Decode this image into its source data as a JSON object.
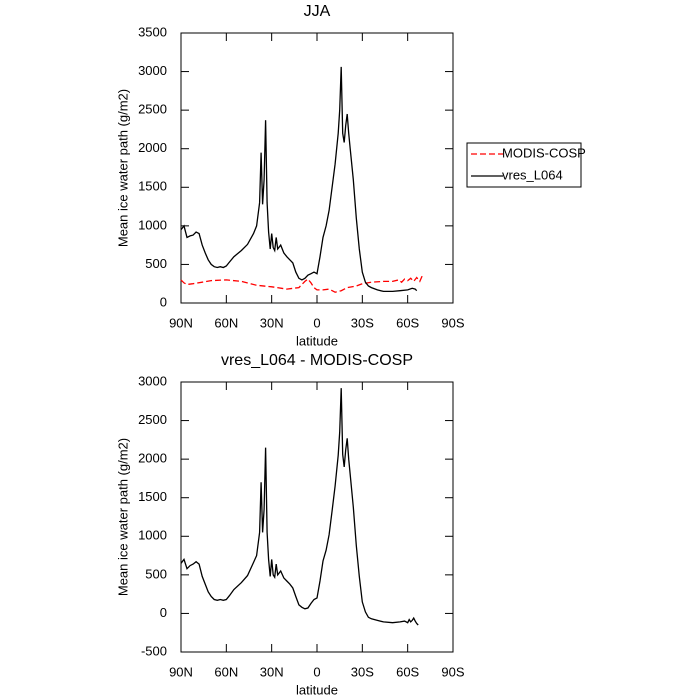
{
  "chart_data": [
    {
      "type": "line",
      "title": "JJA",
      "x_label": "latitude",
      "y_label": "Mean ice water path (g/m2)",
      "xlim": [
        90,
        -90
      ],
      "ylim": [
        0,
        3500
      ],
      "xticks": [
        {
          "value": 90,
          "label": "90N"
        },
        {
          "value": 60,
          "label": "60N"
        },
        {
          "value": 30,
          "label": "30N"
        },
        0,
        {
          "value": -30,
          "label": "30S"
        },
        {
          "value": -60,
          "label": "60S"
        },
        {
          "value": -90,
          "label": "90S"
        }
      ],
      "yticks": [
        0,
        500,
        1000,
        1500,
        2000,
        2500,
        3000,
        3500
      ],
      "legend": "right",
      "series": [
        {
          "name": "MODIS-COSP",
          "color": "#ff0000",
          "dash": true,
          "x": [
            90,
            88,
            86,
            82,
            76,
            70,
            60,
            50,
            40,
            30,
            20,
            12,
            8,
            6,
            4,
            2,
            0,
            -4,
            -8,
            -12,
            -16,
            -20,
            -26,
            -30,
            -36,
            -44,
            -50,
            -54,
            -56,
            -58,
            -60,
            -62,
            -64,
            -66,
            -68,
            -70
          ],
          "values": [
            300,
            260,
            240,
            250,
            270,
            290,
            300,
            280,
            230,
            210,
            180,
            200,
            280,
            310,
            260,
            200,
            170,
            170,
            180,
            140,
            160,
            200,
            220,
            250,
            270,
            280,
            280,
            300,
            270,
            310,
            290,
            320,
            280,
            330,
            280,
            370
          ]
        },
        {
          "name": "vres_L064",
          "color": "#000000",
          "dash": false,
          "x": [
            90,
            88,
            86,
            84,
            82,
            80,
            78,
            76,
            74,
            72,
            70,
            68,
            66,
            64,
            62,
            60,
            58,
            55,
            50,
            46,
            42,
            40,
            38,
            37,
            36,
            35,
            34,
            33,
            32,
            31,
            30,
            29,
            28,
            27,
            26,
            24,
            22,
            20,
            18,
            16,
            14,
            12,
            10,
            8,
            6,
            4,
            2,
            0,
            -2,
            -4,
            -6,
            -8,
            -10,
            -12,
            -14,
            -15,
            -16,
            -17,
            -18,
            -19,
            -20,
            -21,
            -22,
            -24,
            -26,
            -28,
            -30,
            -32,
            -34,
            -36,
            -40,
            -44,
            -50,
            -55,
            -60,
            -63,
            -65,
            -66
          ],
          "values": [
            950,
            1000,
            850,
            870,
            880,
            920,
            900,
            750,
            650,
            560,
            500,
            470,
            460,
            470,
            460,
            480,
            530,
            600,
            680,
            760,
            900,
            1000,
            1300,
            1950,
            1280,
            1600,
            2370,
            1300,
            920,
            700,
            900,
            720,
            680,
            850,
            700,
            750,
            650,
            600,
            560,
            520,
            400,
            320,
            300,
            320,
            360,
            380,
            400,
            380,
            600,
            850,
            1000,
            1200,
            1500,
            1800,
            2200,
            2500,
            3060,
            2200,
            2080,
            2300,
            2450,
            2200,
            2000,
            1600,
            1100,
            700,
            400,
            270,
            220,
            200,
            170,
            150,
            150,
            160,
            170,
            190,
            180,
            160
          ]
        }
      ]
    },
    {
      "type": "line",
      "title": "vres_L064 - MODIS-COSP",
      "x_label": "latitude",
      "y_label": "Mean ice water path (g/m2)",
      "xlim": [
        90,
        -90
      ],
      "ylim": [
        -500,
        3000
      ],
      "xticks": [
        {
          "value": 90,
          "label": "90N"
        },
        {
          "value": 60,
          "label": "60N"
        },
        {
          "value": 30,
          "label": "30N"
        },
        0,
        {
          "value": -30,
          "label": "30S"
        },
        {
          "value": -60,
          "label": "60S"
        },
        {
          "value": -90,
          "label": "90S"
        }
      ],
      "yticks": [
        -500,
        0,
        500,
        1000,
        1500,
        2000,
        2500,
        3000
      ],
      "series": [
        {
          "color": "#000000",
          "dash": false,
          "x": [
            90,
            88,
            86,
            84,
            82,
            80,
            78,
            76,
            74,
            72,
            70,
            68,
            66,
            64,
            62,
            60,
            58,
            55,
            50,
            46,
            42,
            40,
            38,
            37,
            36,
            35,
            34,
            33,
            32,
            31,
            30,
            29,
            28,
            27,
            26,
            24,
            22,
            20,
            18,
            16,
            14,
            12,
            10,
            8,
            6,
            4,
            2,
            0,
            -2,
            -4,
            -6,
            -8,
            -10,
            -12,
            -14,
            -15,
            -16,
            -17,
            -18,
            -19,
            -20,
            -21,
            -22,
            -24,
            -26,
            -28,
            -30,
            -32,
            -34,
            -36,
            -40,
            -44,
            -50,
            -55,
            -58,
            -60,
            -61,
            -62,
            -63,
            -64,
            -65,
            -66,
            -67
          ],
          "values": [
            650,
            700,
            580,
            620,
            640,
            670,
            640,
            480,
            380,
            280,
            220,
            180,
            170,
            180,
            170,
            180,
            230,
            310,
            400,
            490,
            660,
            750,
            1050,
            1700,
            1050,
            1350,
            2150,
            1050,
            700,
            480,
            700,
            500,
            470,
            640,
            500,
            550,
            460,
            420,
            380,
            330,
            220,
            110,
            80,
            60,
            70,
            130,
            180,
            200,
            420,
            680,
            820,
            1020,
            1330,
            1650,
            2050,
            2350,
            2920,
            2060,
            1900,
            2120,
            2270,
            2000,
            1800,
            1380,
            880,
            480,
            150,
            20,
            -50,
            -70,
            -90,
            -110,
            -120,
            -110,
            -100,
            -120,
            -80,
            -110,
            -90,
            -60,
            -100,
            -130,
            -150
          ]
        }
      ]
    }
  ]
}
